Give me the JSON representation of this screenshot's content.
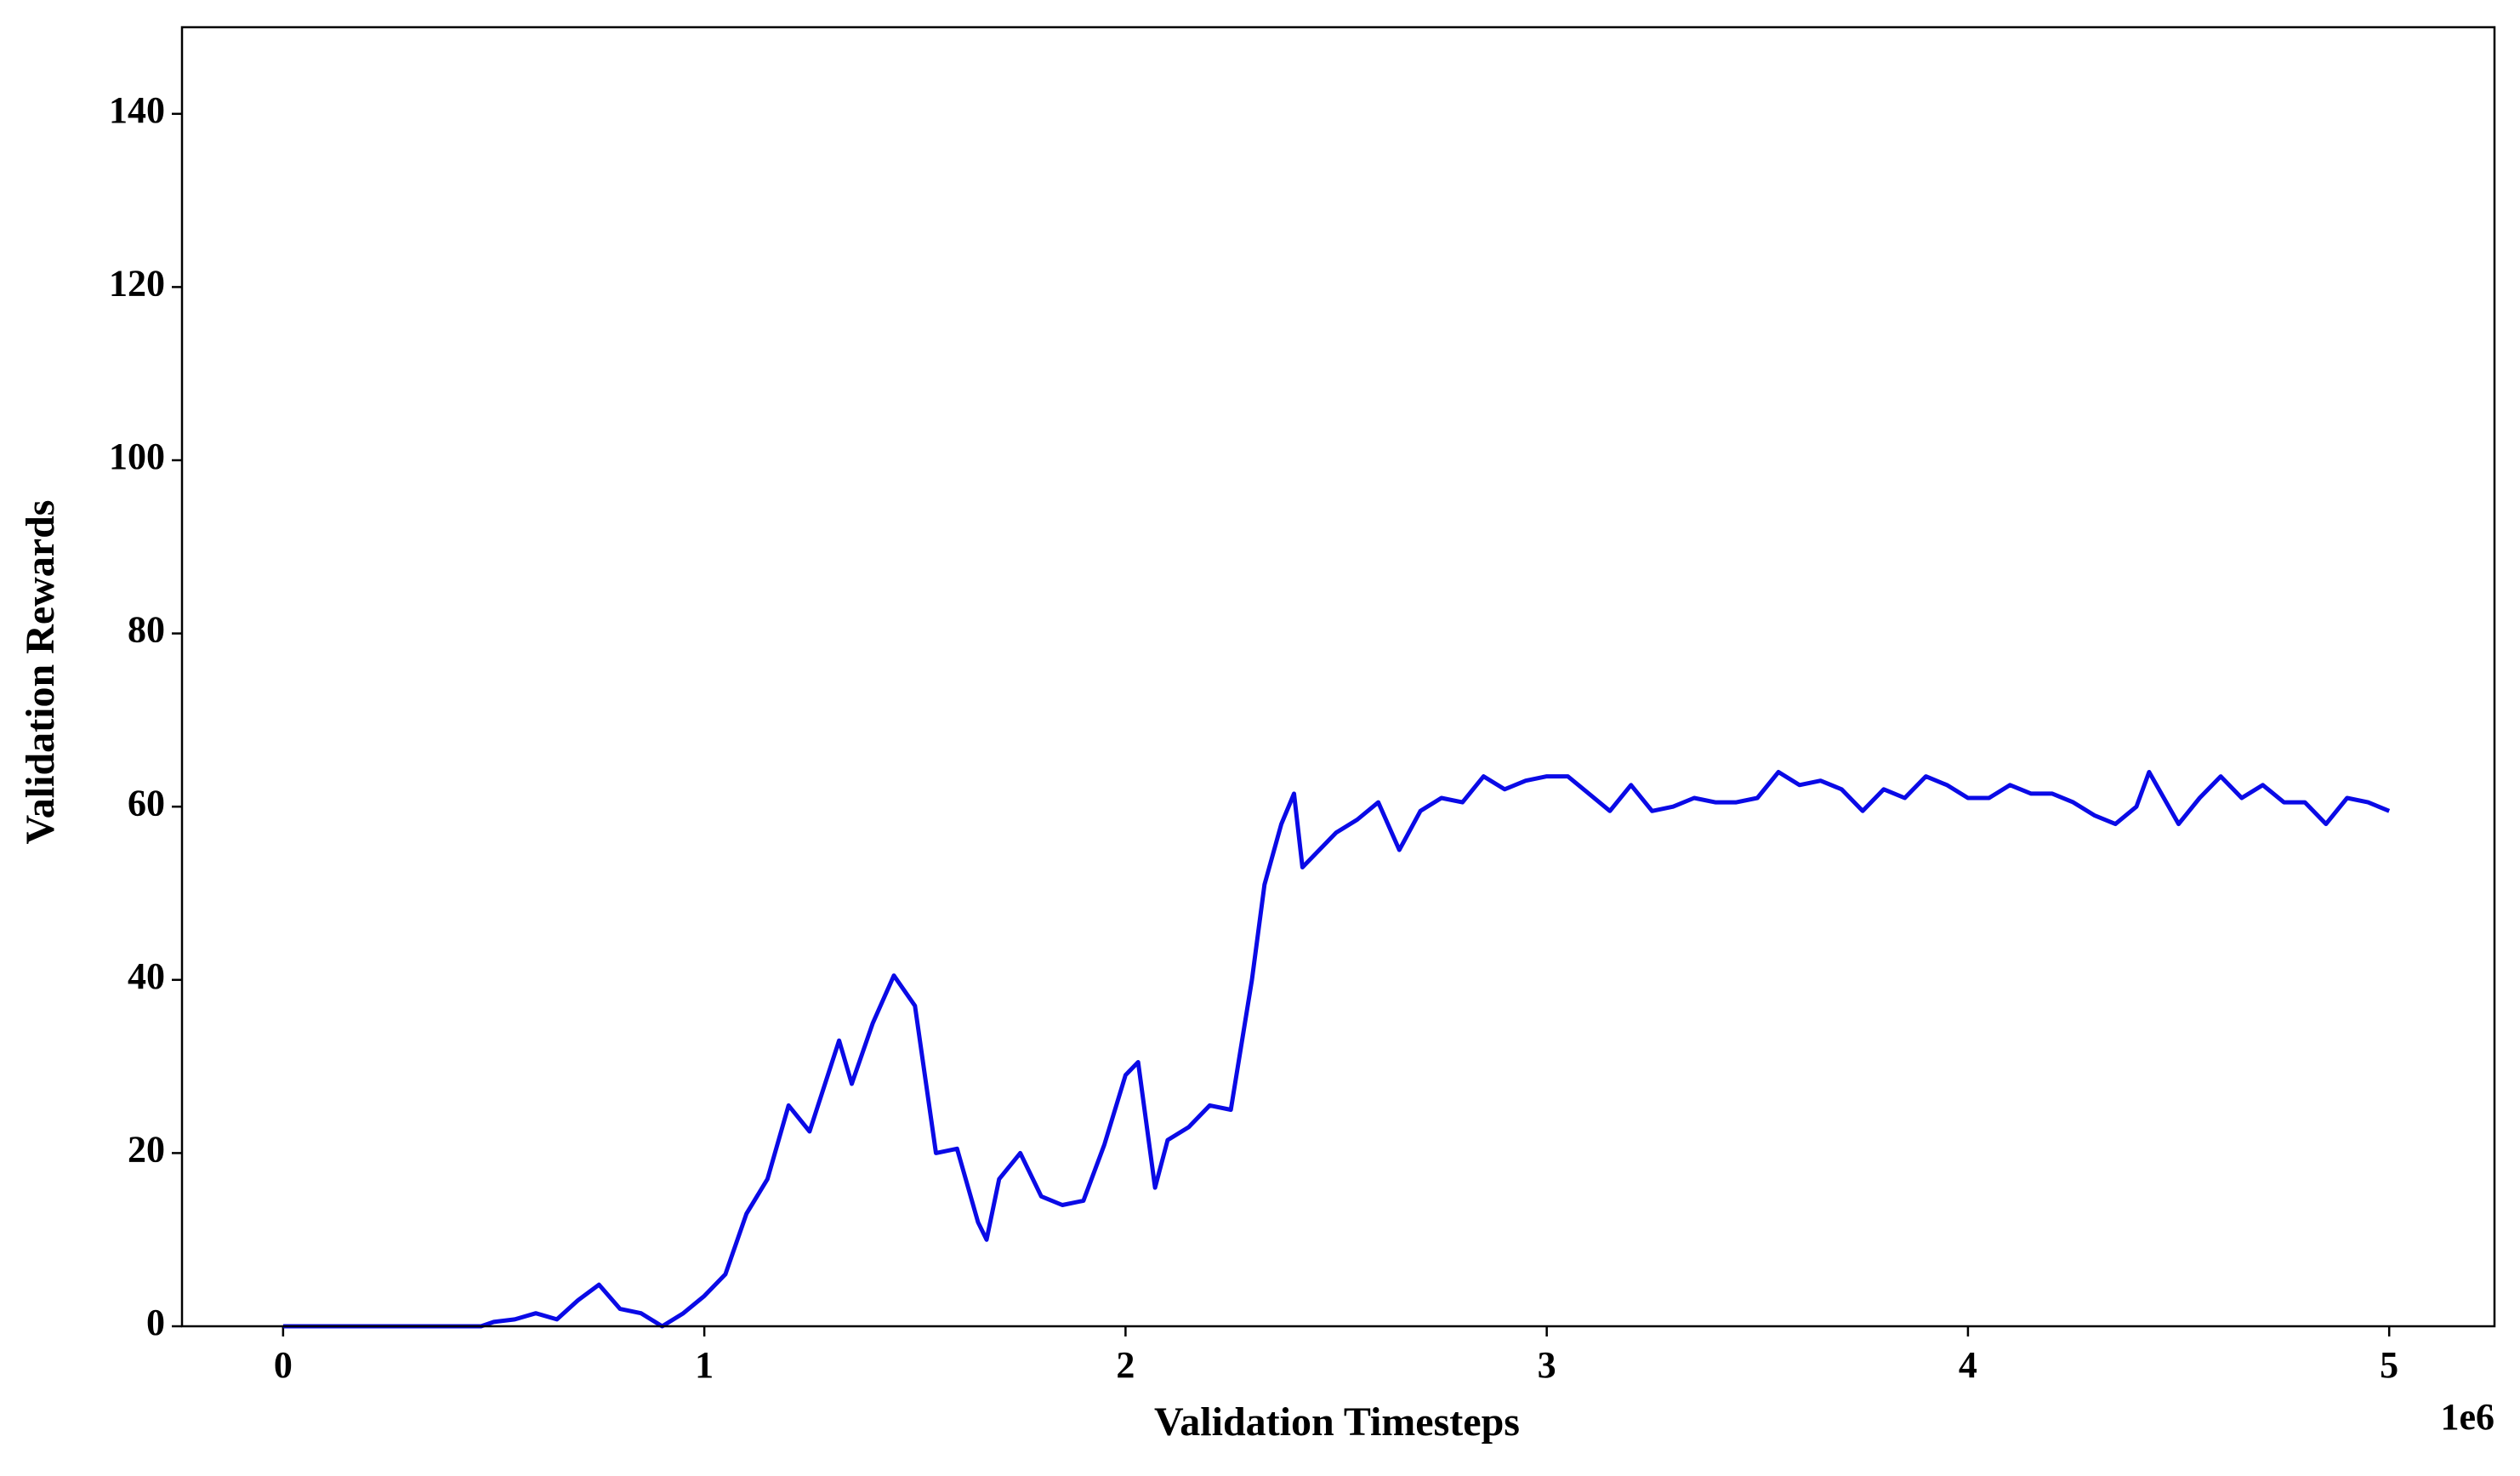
{
  "chart_data": {
    "type": "line",
    "x_label": "Validation Timesteps",
    "y_label": "Validation Rewards",
    "x_offset_label": "1e6",
    "x": [
      0,
      0.1,
      0.2,
      0.3,
      0.4,
      0.47,
      0.5,
      0.55,
      0.6,
      0.65,
      0.7,
      0.75,
      0.8,
      0.85,
      0.9,
      0.95,
      1.0,
      1.05,
      1.1,
      1.15,
      1.2,
      1.25,
      1.3,
      1.32,
      1.35,
      1.4,
      1.45,
      1.5,
      1.55,
      1.6,
      1.65,
      1.67,
      1.7,
      1.75,
      1.8,
      1.85,
      1.9,
      1.95,
      2.0,
      2.03,
      2.07,
      2.1,
      2.15,
      2.2,
      2.25,
      2.3,
      2.33,
      2.37,
      2.4,
      2.42,
      2.5,
      2.55,
      2.6,
      2.65,
      2.7,
      2.75,
      2.8,
      2.85,
      2.9,
      2.95,
      3.0,
      3.05,
      3.1,
      3.15,
      3.2,
      3.25,
      3.3,
      3.35,
      3.4,
      3.45,
      3.5,
      3.55,
      3.6,
      3.65,
      3.7,
      3.75,
      3.8,
      3.85,
      3.9,
      3.95,
      4.0,
      4.05,
      4.1,
      4.15,
      4.2,
      4.25,
      4.3,
      4.35,
      4.4,
      4.43,
      4.5,
      4.55,
      4.6,
      4.65,
      4.7,
      4.75,
      4.8,
      4.85,
      4.9,
      4.95,
      5.0
    ],
    "series": [
      {
        "name": "Validation Rewards",
        "color": "#0a0ae6",
        "values": [
          0,
          0,
          0,
          0,
          0,
          0,
          0.5,
          0.8,
          1.5,
          0.8,
          3,
          4.8,
          2,
          1.5,
          0,
          1.5,
          3.5,
          6,
          13,
          17,
          25.5,
          22.5,
          30,
          33,
          28,
          35,
          40.5,
          37,
          20,
          20.5,
          12,
          10,
          17,
          20,
          15,
          14,
          14.5,
          21,
          29,
          30.5,
          16,
          21.5,
          23,
          25.5,
          25,
          40,
          51,
          58,
          61.5,
          53,
          57,
          58.5,
          60.5,
          55,
          59.5,
          61,
          60.5,
          63.5,
          62,
          63,
          63.5,
          63.5,
          61.5,
          59.5,
          62.5,
          59.5,
          60,
          61,
          60.5,
          60.5,
          61,
          64,
          62.5,
          63,
          62,
          59.5,
          62,
          61,
          63.5,
          62.5,
          61,
          61,
          62.5,
          61.5,
          61.5,
          60.5,
          59,
          58,
          60,
          64,
          58,
          61,
          63.5,
          61,
          62.5,
          60.5,
          60.5,
          58,
          61,
          60.5,
          59.5
        ]
      }
    ],
    "xlim": [
      -0.24,
      5.25
    ],
    "xticks": [
      0,
      1,
      2,
      3,
      4,
      5
    ],
    "ylim": [
      0,
      150
    ],
    "yticks": [
      0,
      20,
      40,
      60,
      80,
      100,
      120,
      140
    ],
    "grid": false
  }
}
